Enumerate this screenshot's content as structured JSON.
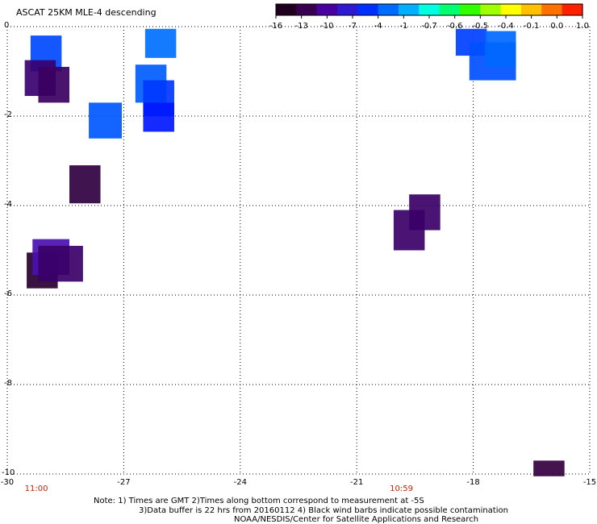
{
  "title": "ASCAT 25KM MLE-4 descending",
  "colorbar": {
    "colors": [
      "#200020",
      "#3a0050",
      "#4b00a0",
      "#2e1ad0",
      "#0030ff",
      "#006cff",
      "#00b0ff",
      "#00ffe0",
      "#00ff70",
      "#30ff00",
      "#a0ff00",
      "#ffff00",
      "#ffc000",
      "#ff7000",
      "#ff2000"
    ],
    "ticks": [
      {
        "label": "-16"
      },
      {
        "label": "-13"
      },
      {
        "label": "-10"
      },
      {
        "label": "-7"
      },
      {
        "label": "-4"
      },
      {
        "label": "-1"
      },
      {
        "label": "-0.7"
      },
      {
        "label": "-0.6"
      },
      {
        "label": "-0.5"
      },
      {
        "label": "-0.4"
      },
      {
        "label": "-0.1"
      },
      {
        "label": "0.0"
      },
      {
        "label": "1.0"
      }
    ]
  },
  "map": {
    "lon_range": [
      -30,
      -15
    ],
    "lat_range": [
      -10,
      0
    ],
    "x_ticks": [
      {
        "value": -30,
        "label": "-30"
      },
      {
        "value": -27,
        "label": "-27"
      },
      {
        "value": -24,
        "label": "-24"
      },
      {
        "value": -21,
        "label": "-21"
      },
      {
        "value": -18,
        "label": "-18"
      },
      {
        "value": -15,
        "label": "-15"
      }
    ],
    "y_ticks": [
      {
        "value": 0,
        "label": "0"
      },
      {
        "value": -2,
        "label": "-2"
      },
      {
        "value": -4,
        "label": "-4"
      },
      {
        "value": -6,
        "label": "-6"
      },
      {
        "value": -8,
        "label": "-8"
      },
      {
        "value": -10,
        "label": "-10"
      }
    ],
    "times": [
      {
        "value": -29.25,
        "label": "11:00"
      },
      {
        "value": -19.85,
        "label": "10:59"
      }
    ],
    "cells": [
      {
        "lon0": -29.4,
        "lon1": -28.6,
        "lat0": -0.2,
        "lat1": -1.0,
        "color": "#0048ff"
      },
      {
        "lon0": -29.55,
        "lon1": -28.75,
        "lat0": -0.75,
        "lat1": -1.55,
        "color": "#3a0070"
      },
      {
        "lon0": -29.2,
        "lon1": -28.4,
        "lat0": -0.9,
        "lat1": -1.7,
        "color": "#3b0060"
      },
      {
        "lon0": -26.45,
        "lon1": -25.65,
        "lat0": -0.05,
        "lat1": -0.7,
        "color": "#0070ff"
      },
      {
        "lon0": -26.7,
        "lon1": -25.9,
        "lat0": -0.85,
        "lat1": -1.7,
        "color": "#005cff"
      },
      {
        "lon0": -26.5,
        "lon1": -25.7,
        "lat0": -1.2,
        "lat1": -2.0,
        "color": "#0038ff"
      },
      {
        "lon0": -26.5,
        "lon1": -25.7,
        "lat0": -1.7,
        "lat1": -2.35,
        "color": "#0018ff"
      },
      {
        "lon0": -27.9,
        "lon1": -27.05,
        "lat0": -1.7,
        "lat1": -2.5,
        "color": "#0058ff"
      },
      {
        "lon0": -28.4,
        "lon1": -27.6,
        "lat0": -3.1,
        "lat1": -3.95,
        "color": "#300040"
      },
      {
        "lon0": -29.5,
        "lon1": -28.7,
        "lat0": -5.05,
        "lat1": -5.85,
        "color": "#280030"
      },
      {
        "lon0": -29.35,
        "lon1": -28.4,
        "lat0": -4.75,
        "lat1": -5.55,
        "color": "#4a10b0"
      },
      {
        "lon0": -29.2,
        "lon1": -28.05,
        "lat0": -4.9,
        "lat1": -5.7,
        "color": "#3a0068"
      },
      {
        "lon0": -19.65,
        "lon1": -18.85,
        "lat0": -3.75,
        "lat1": -4.55,
        "color": "#3b0068"
      },
      {
        "lon0": -20.05,
        "lon1": -19.25,
        "lat0": -4.1,
        "lat1": -5.0,
        "color": "#3a0068"
      },
      {
        "lon0": -18.45,
        "lon1": -17.65,
        "lat0": -0.05,
        "lat1": -0.65,
        "color": "#0040ff"
      },
      {
        "lon0": -18.1,
        "lon1": -16.9,
        "lat0": -0.35,
        "lat1": -1.2,
        "color": "#0050ff"
      },
      {
        "lon0": -17.7,
        "lon1": -16.9,
        "lat0": -0.1,
        "lat1": -0.9,
        "color": "#0068ff"
      },
      {
        "lon0": -16.45,
        "lon1": -15.65,
        "lat0": -9.7,
        "lat1": -10.05,
        "color": "#350040"
      }
    ]
  },
  "notes": [
    "Note: 1) Times are GMT 2)Times along bottom correspond to measurement at -5S",
    "3)Data buffer is 22 hrs from 20160112 4) Black wind barbs indicate possible contamination",
    "NOAA/NESDIS/Center for Satellite Applications and Research"
  ]
}
